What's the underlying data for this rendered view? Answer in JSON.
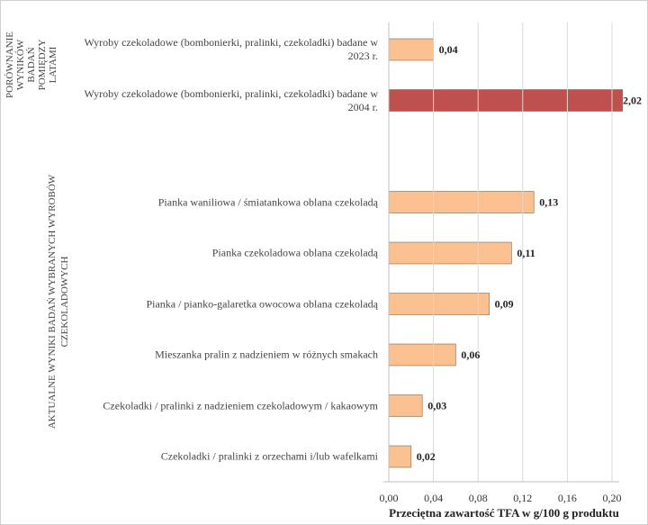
{
  "chart_data": {
    "type": "bar",
    "orientation": "horizontal",
    "x_label": "Przeciętna zawartość TFA w g/100 g produktu",
    "groups": [
      {
        "lines": [
          "PORÓWNANIE",
          "WYNIKÓW",
          "BADAŃ",
          "POMIĘDZY",
          "LATAMI"
        ]
      },
      {
        "lines": [
          "AKTUALNE WYNIKI BADAŃ WYBRANYCH WYROBÓW",
          "CZEKOLADOWYCH"
        ]
      }
    ],
    "categories": [
      "Wyroby czekoladowe (bombonierki, pralinki, czekoladki) badane w 2023 r.",
      "Wyroby czekoladowe (bombonierki, pralinki, czekoladki) badane w 2004 r.",
      null,
      "Pianka waniliowa / śmiatankowa oblana czekoladą",
      "Pianka czekoladowa oblana czekoladą",
      "Pianka / pianko-galaretka owocowa oblana czekoladą",
      "Mieszanka pralin z nadzieniem w różnych smakach",
      "Czekoladki / pralinki z nadzieniem czekoladowym / kakaowym",
      "Czekoladki / pralinki z orzechami i/lub wafelkami"
    ],
    "values": [
      0.04,
      2.02,
      null,
      0.13,
      0.11,
      0.09,
      0.06,
      0.03,
      0.02
    ],
    "value_labels": [
      "0,04",
      "2,02",
      null,
      "0,13",
      "0,11",
      "0,09",
      "0,06",
      "0,03",
      "0,02"
    ],
    "colors": [
      "#fac090",
      "#c0504d",
      null,
      "#fac090",
      "#fac090",
      "#fac090",
      "#fac090",
      "#fac090",
      "#fac090"
    ],
    "xlim": [
      0,
      0.2
    ],
    "xticks": [
      {
        "value": 0,
        "label": "0,00"
      },
      {
        "value": 0.04,
        "label": "0,04"
      },
      {
        "value": 0.08,
        "label": "0,08"
      },
      {
        "value": 0.12,
        "label": "0,12"
      },
      {
        "value": 0.16,
        "label": "0,16"
      },
      {
        "value": 0.2,
        "label": "0,20"
      }
    ],
    "grid": true
  }
}
